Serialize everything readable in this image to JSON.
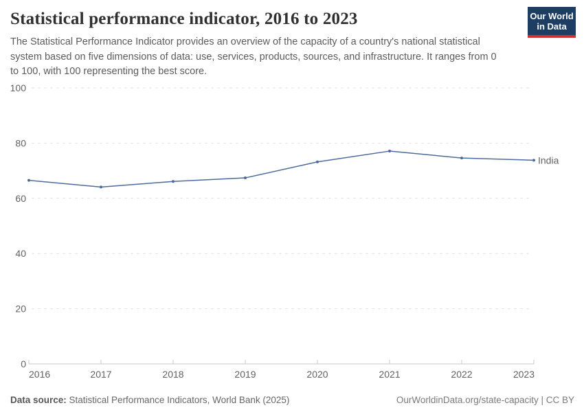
{
  "header": {
    "title": "Statistical performance indicator, 2016 to 2023",
    "subtitle": "The Statistical Performance Indicator provides an overview of the capacity of a country's national statistical system based on five dimensions of data: use, services, products, sources, and infrastructure. It ranges from 0 to 100, with 100 representing the best score.",
    "logo": {
      "line1": "Our World",
      "line2": "in Data",
      "bg_color": "#1d3d63",
      "bar_color": "#c9352d"
    }
  },
  "chart_data": {
    "type": "line",
    "title": "Statistical performance indicator, 2016 to 2023",
    "x": [
      2016,
      2017,
      2018,
      2019,
      2020,
      2021,
      2022,
      2023
    ],
    "series": [
      {
        "name": "India",
        "color": "#4C6A9C",
        "values": [
          66.5,
          64.1,
          66.1,
          67.4,
          73.2,
          77.1,
          74.6,
          73.8
        ]
      }
    ],
    "xlabel": "",
    "ylabel": "",
    "ylim": [
      0,
      100
    ],
    "yticks": [
      0,
      20,
      40,
      60,
      80,
      100
    ],
    "grid": "horizontal-dashed",
    "legend": "end-of-line-label"
  },
  "chart_style": {
    "grid_color": "#e2e2e2",
    "axis_color": "#c8c8c8",
    "tick_label_color": "#616161"
  },
  "footer": {
    "source_label": "Data source:",
    "source_text": " Statistical Performance Indicators, World Bank (2025)",
    "credit": "OurWorldinData.org/state-capacity | CC BY"
  }
}
